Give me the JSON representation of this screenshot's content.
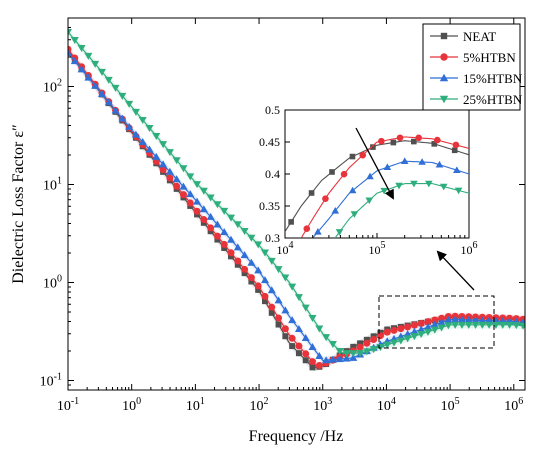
{
  "chart_data": {
    "type": "line",
    "xlabel": "Frequency /Hz",
    "ylabel": "Dielectric Loss Factor ε″",
    "x_scale": "log",
    "y_scale": "log",
    "xlim": [
      0.1,
      1500000
    ],
    "ylim": [
      0.08,
      500
    ],
    "x_ticks": [
      0.1,
      1,
      10,
      100,
      1000,
      10000,
      100000,
      1000000
    ],
    "x_tick_labels": [
      {
        "base": "10",
        "exp": "-1"
      },
      {
        "base": "10",
        "exp": "0"
      },
      {
        "base": "10",
        "exp": "1"
      },
      {
        "base": "10",
        "exp": "2"
      },
      {
        "base": "10",
        "exp": "3"
      },
      {
        "base": "10",
        "exp": "4"
      },
      {
        "base": "10",
        "exp": "5"
      },
      {
        "base": "10",
        "exp": "6"
      }
    ],
    "y_ticks": [
      0.1,
      1,
      10,
      100
    ],
    "y_tick_labels": [
      {
        "base": "10",
        "exp": "-1"
      },
      {
        "base": "10",
        "exp": "0"
      },
      {
        "base": "10",
        "exp": "1"
      },
      {
        "base": "10",
        "exp": "2"
      }
    ],
    "legend_position": "top-right",
    "series": [
      {
        "name": "NEAT",
        "color": "#505050",
        "marker": "square",
        "x": [
          0.1,
          1,
          10,
          100,
          300,
          700,
          1000,
          3000,
          10000,
          100000,
          1000000,
          1500000
        ],
        "y": [
          230,
          34,
          5.2,
          0.82,
          0.24,
          0.135,
          0.14,
          0.22,
          0.33,
          0.44,
          0.42,
          0.41
        ]
      },
      {
        "name": "5%HTBN",
        "color": "#e8333a",
        "marker": "circle",
        "x": [
          0.1,
          1,
          10,
          100,
          300,
          800,
          1000,
          3000,
          10000,
          100000,
          1000000,
          1500000
        ],
        "y": [
          240,
          35,
          5.6,
          0.9,
          0.29,
          0.14,
          0.145,
          0.2,
          0.31,
          0.455,
          0.43,
          0.42
        ]
      },
      {
        "name": "15%HTBN",
        "color": "#2f6fd6",
        "marker": "triangle-up",
        "x": [
          0.1,
          1,
          10,
          100,
          300,
          1000,
          3000,
          10000,
          100000,
          1000000,
          1500000
        ],
        "y": [
          220,
          36,
          7.0,
          1.3,
          0.45,
          0.16,
          0.17,
          0.25,
          0.42,
          0.4,
          0.39
        ]
      },
      {
        "name": "25%HTBN",
        "color": "#2fae7d",
        "marker": "triangle-down",
        "x": [
          0.1,
          1,
          10,
          100,
          300,
          1000,
          2000,
          4000,
          10000,
          100000,
          1000000,
          1500000
        ],
        "y": [
          360,
          62,
          10.5,
          2.4,
          1.0,
          0.3,
          0.19,
          0.19,
          0.23,
          0.37,
          0.37,
          0.36
        ]
      }
    ],
    "inset": {
      "x_scale": "log",
      "xlim": [
        10000,
        1000000
      ],
      "ylim": [
        0.3,
        0.5
      ],
      "x_ticks": [
        10000,
        100000,
        1000000
      ],
      "x_tick_labels": [
        {
          "base": "10",
          "exp": "4"
        },
        {
          "base": "10",
          "exp": "5"
        },
        {
          "base": "10",
          "exp": "6"
        }
      ],
      "y_ticks": [
        0.3,
        0.35,
        0.4,
        0.45,
        0.5
      ],
      "y_tick_labels": [
        "0.3",
        "0.35",
        "0.4",
        "0.45",
        "0.5"
      ],
      "series": [
        {
          "name": "NEAT",
          "x": [
            10000,
            15000,
            25000,
            50000,
            100000,
            200000,
            400000,
            1000000
          ],
          "y": [
            0.31,
            0.35,
            0.39,
            0.425,
            0.445,
            0.452,
            0.448,
            0.43
          ]
        },
        {
          "name": "5%HTBN",
          "x": [
            15000,
            20000,
            30000,
            50000,
            100000,
            200000,
            400000,
            1000000
          ],
          "y": [
            0.3,
            0.33,
            0.37,
            0.41,
            0.45,
            0.458,
            0.455,
            0.44
          ]
        },
        {
          "name": "15%HTBN",
          "x": [
            20000,
            30000,
            50000,
            100000,
            200000,
            400000,
            1000000
          ],
          "y": [
            0.3,
            0.33,
            0.37,
            0.405,
            0.42,
            0.418,
            0.4
          ]
        },
        {
          "name": "25%HTBN",
          "x": [
            35000,
            50000,
            100000,
            200000,
            400000,
            1000000
          ],
          "y": [
            0.3,
            0.33,
            0.37,
            0.385,
            0.385,
            0.37
          ]
        }
      ]
    }
  }
}
